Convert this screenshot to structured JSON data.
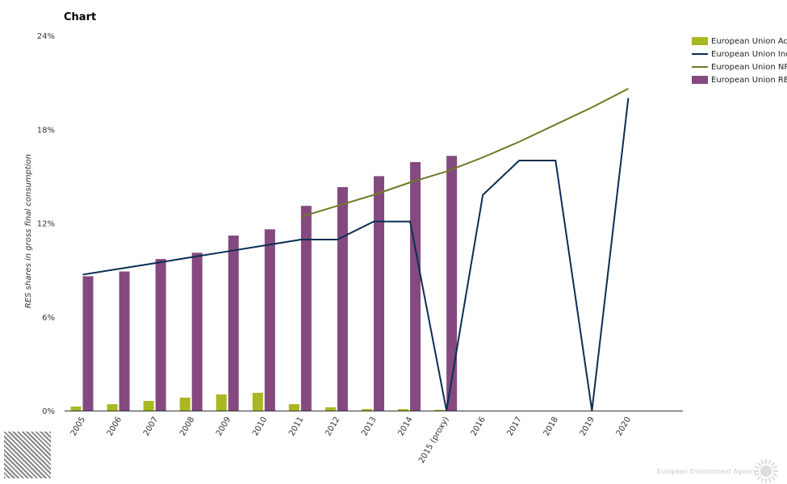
{
  "title": "Chart",
  "footer": "European Environment Agency",
  "chart_data": {
    "type": "bar",
    "title": "Chart",
    "ylabel": "RES shares in gross final consumption",
    "xlabel": "",
    "ylim": [
      0,
      24
    ],
    "yticks": [
      "0%",
      "6%",
      "12%",
      "18%",
      "24%"
    ],
    "ytick_values": [
      0,
      6,
      12,
      18,
      24
    ],
    "categories": [
      "2005",
      "2006",
      "2007",
      "2008",
      "2009",
      "2010",
      "2011",
      "2012",
      "2013",
      "2014",
      "2015 (proxy)",
      "2016",
      "2017",
      "2018",
      "2019",
      "2020"
    ],
    "legend_position": "top-right",
    "series": [
      {
        "name": "European Union Ad",
        "kind": "bar",
        "color": "#a9b820",
        "values": [
          0.26,
          0.41,
          0.62,
          0.83,
          1.03,
          1.14,
          0.41,
          0.21,
          0.1,
          0.1,
          0.05,
          null,
          null,
          null,
          null,
          null
        ]
      },
      {
        "name": "European Union RE",
        "kind": "bar",
        "color": "#844a80",
        "values": [
          8.6,
          8.9,
          9.7,
          10.1,
          11.2,
          11.6,
          13.1,
          14.3,
          15.0,
          15.9,
          16.3,
          null,
          null,
          null,
          null,
          null
        ]
      },
      {
        "name": "European Union Ind",
        "kind": "line",
        "color": "#0b2d52",
        "values": [
          8.7,
          9.07,
          9.44,
          9.82,
          10.19,
          10.57,
          10.94,
          10.94,
          12.1,
          12.1,
          0,
          13.8,
          16.0,
          16.0,
          0,
          20.0
        ]
      },
      {
        "name": "European Union NR",
        "kind": "line",
        "color": "#6f7a25",
        "values": [
          null,
          null,
          null,
          null,
          null,
          null,
          12.4,
          13.1,
          13.8,
          14.6,
          15.3,
          16.2,
          17.2,
          18.3,
          19.4,
          20.6
        ]
      }
    ]
  }
}
